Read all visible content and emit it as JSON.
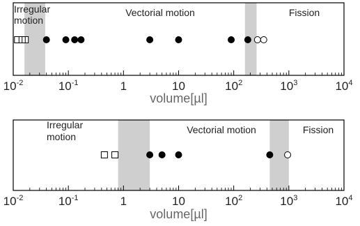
{
  "chart_data": [
    {
      "type": "scatter",
      "xscale": "log",
      "xlim": [
        0.01,
        10000
      ],
      "xlabel": "volume[µl]",
      "ylabel": "",
      "x_ticks": [
        {
          "value": 0.01,
          "base": "10",
          "exp": "-2"
        },
        {
          "value": 0.1,
          "base": "10",
          "exp": "-1"
        },
        {
          "value": 1,
          "base": "1",
          "exp": ""
        },
        {
          "value": 10,
          "base": "10",
          "exp": ""
        },
        {
          "value": 100,
          "base": "10",
          "exp": "2"
        },
        {
          "value": 1000,
          "base": "10",
          "exp": "3"
        },
        {
          "value": 10000,
          "base": "10",
          "exp": "4"
        }
      ],
      "shaded_regions": [
        [
          0.016,
          0.038
        ],
        [
          160,
          260
        ]
      ],
      "region_labels": [
        {
          "text": "Irregular",
          "line2": "motion"
        },
        {
          "text": "Vectorial motion",
          "line2": ""
        },
        {
          "text": "Fission",
          "line2": ""
        }
      ],
      "series": [
        {
          "marker": "square-open",
          "x": [
            0.012,
            0.0145
          ]
        },
        {
          "marker": "square-half",
          "x": [
            0.0165
          ]
        },
        {
          "marker": "circle-filled",
          "x": [
            0.04,
            0.09,
            0.13,
            0.17,
            3,
            10,
            90,
            180
          ]
        },
        {
          "marker": "circle-open",
          "x": [
            270,
            350
          ]
        }
      ]
    },
    {
      "type": "scatter",
      "xscale": "log",
      "xlim": [
        0.01,
        10000
      ],
      "xlabel": "volume[µl]",
      "ylabel": "",
      "x_ticks": [
        {
          "value": 0.01,
          "base": "10",
          "exp": "-2"
        },
        {
          "value": 0.1,
          "base": "10",
          "exp": "-1"
        },
        {
          "value": 1,
          "base": "1",
          "exp": ""
        },
        {
          "value": 10,
          "base": "10",
          "exp": ""
        },
        {
          "value": 100,
          "base": "10",
          "exp": "2"
        },
        {
          "value": 1000,
          "base": "10",
          "exp": "3"
        },
        {
          "value": 10000,
          "base": "10",
          "exp": "4"
        }
      ],
      "shaded_regions": [
        [
          0.8,
          3
        ],
        [
          450,
          1000
        ]
      ],
      "region_labels": [
        {
          "text": "Irregular",
          "line2": "motion"
        },
        {
          "text": "Vectorial motion",
          "line2": ""
        },
        {
          "text": "Fission",
          "line2": ""
        }
      ],
      "series": [
        {
          "marker": "square-open",
          "x": [
            0.45,
            0.7
          ]
        },
        {
          "marker": "circle-filled",
          "x": [
            3,
            5,
            10,
            450
          ]
        },
        {
          "marker": "circle-open",
          "x": [
            950
          ]
        }
      ]
    }
  ]
}
